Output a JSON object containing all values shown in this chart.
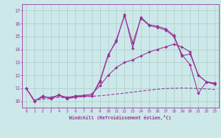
{
  "xlabel": "Windchill (Refroidissement éolien,°C)",
  "xlim": [
    -0.5,
    23.5
  ],
  "ylim": [
    9.5,
    17.5
  ],
  "yticks": [
    10,
    11,
    12,
    13,
    14,
    15,
    16,
    17
  ],
  "xticks": [
    0,
    1,
    2,
    3,
    4,
    5,
    6,
    7,
    8,
    9,
    10,
    11,
    12,
    13,
    14,
    15,
    16,
    17,
    18,
    19,
    20,
    21,
    22,
    23
  ],
  "background_color": "#cce8e8",
  "line_color": "#993399",
  "grid_color": "#aacccc",
  "line1_x": [
    0,
    1,
    2,
    3,
    4,
    5,
    6,
    7,
    8,
    9,
    10,
    11,
    12,
    13,
    14,
    15,
    16,
    17,
    18,
    19,
    20,
    21,
    22,
    23
  ],
  "line1_y": [
    11.0,
    10.0,
    10.4,
    10.2,
    10.5,
    10.2,
    10.4,
    10.4,
    10.4,
    11.6,
    13.6,
    14.6,
    16.7,
    14.1,
    16.5,
    15.9,
    15.8,
    15.6,
    15.1,
    13.6,
    12.8,
    10.6,
    11.5,
    11.4
  ],
  "line2_x": [
    0,
    1,
    2,
    3,
    4,
    5,
    6,
    7,
    8,
    9,
    10,
    11,
    12,
    13,
    14,
    15,
    16,
    17,
    18,
    19,
    20,
    21,
    22,
    23
  ],
  "line2_y": [
    11.0,
    10.0,
    10.4,
    10.2,
    10.45,
    10.2,
    10.3,
    10.4,
    10.4,
    11.5,
    13.5,
    14.75,
    16.6,
    14.5,
    16.4,
    15.85,
    15.7,
    15.5,
    15.0,
    13.5,
    13.65,
    12.0,
    11.48,
    11.3
  ],
  "line3_x": [
    0,
    1,
    2,
    3,
    4,
    5,
    6,
    7,
    8,
    9,
    10,
    11,
    12,
    13,
    14,
    15,
    16,
    17,
    18,
    19,
    20,
    21,
    22,
    23
  ],
  "line3_y": [
    11.0,
    10.05,
    10.15,
    10.2,
    10.3,
    10.25,
    10.3,
    10.35,
    10.38,
    10.42,
    10.48,
    10.55,
    10.62,
    10.7,
    10.78,
    10.85,
    10.92,
    10.98,
    11.0,
    11.02,
    11.0,
    10.98,
    10.95,
    10.9
  ],
  "line4_x": [
    0,
    1,
    2,
    3,
    4,
    5,
    6,
    7,
    8,
    9,
    10,
    11,
    12,
    13,
    14,
    15,
    16,
    17,
    18,
    19,
    20,
    21,
    22,
    23
  ],
  "line4_y": [
    11.0,
    10.05,
    10.3,
    10.3,
    10.45,
    10.3,
    10.4,
    10.45,
    10.55,
    11.2,
    12.0,
    12.6,
    13.0,
    13.2,
    13.5,
    13.8,
    14.0,
    14.2,
    14.4,
    14.2,
    13.8,
    12.0,
    11.5,
    11.35
  ]
}
